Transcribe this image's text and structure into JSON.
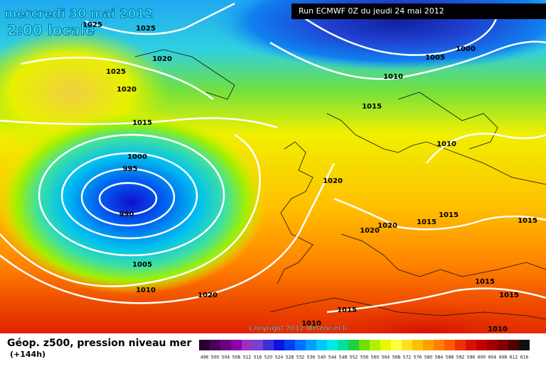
{
  "header": {
    "date": "mercredi 30 mai 2012",
    "time": "2:00 locale",
    "run": "Run ECMWF 0Z du jeudi 24 mai 2012"
  },
  "copyright": "Copyright 2012 Meteociel.fr",
  "legend": {
    "title": "Géop. z500, pression niveau mer",
    "lead": "(+144h)",
    "labels": [
      496,
      500,
      504,
      508,
      512,
      516,
      520,
      524,
      528,
      532,
      536,
      540,
      544,
      548,
      552,
      556,
      560,
      564,
      568,
      572,
      576,
      580,
      584,
      588,
      592,
      596,
      600,
      604,
      608,
      612,
      616
    ],
    "colors": [
      "#2a0030",
      "#4a0058",
      "#6a0080",
      "#8a00a8",
      "#9a30c0",
      "#7a40d0",
      "#3a30d8",
      "#1010e0",
      "#0040f0",
      "#0070ff",
      "#00a0ff",
      "#00c8ff",
      "#00e8e8",
      "#00e0a0",
      "#20d040",
      "#70e000",
      "#b0f000",
      "#e8f800",
      "#ffff40",
      "#ffe020",
      "#ffc000",
      "#ffa000",
      "#ff8000",
      "#ff5a00",
      "#f03000",
      "#d81000",
      "#c00000",
      "#a00000",
      "#800000",
      "#500000",
      "#101010"
    ]
  },
  "isobars": [
    "1025",
    "1025",
    "1020",
    "1025",
    "1020",
    "1000",
    "1005",
    "1010",
    "1015",
    "1015",
    "1000",
    "995",
    "990",
    "1010",
    "1020",
    "1015",
    "1015",
    "1015",
    "1020",
    "1020",
    "1005",
    "1010",
    "1020",
    "1015",
    "1015",
    "1015",
    "1010",
    "1010"
  ]
}
